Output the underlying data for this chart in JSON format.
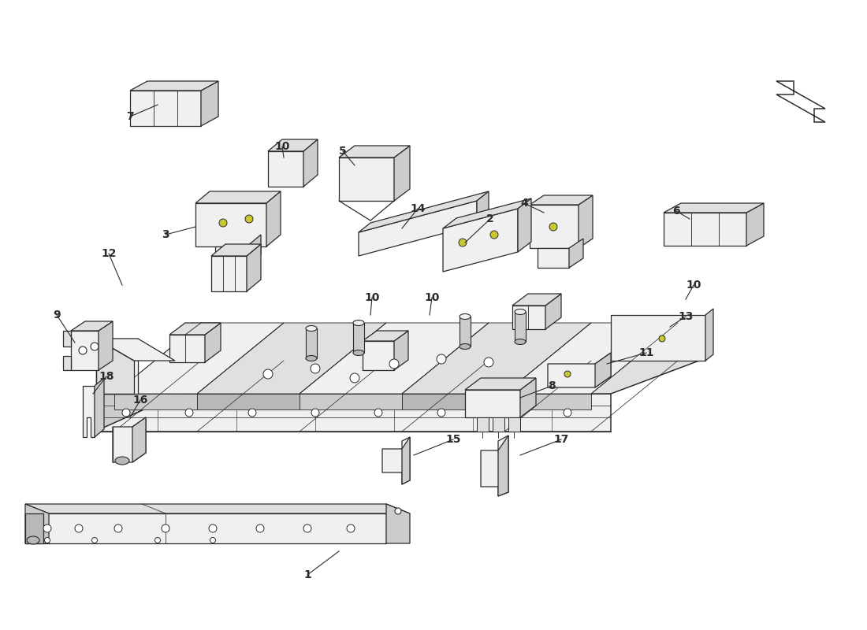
{
  "bg_color": "#ffffff",
  "line_color": "#2a2a2a",
  "lw": 0.9,
  "label_fs": 10,
  "figsize": [
    11.0,
    8.0
  ],
  "dpi": 100,
  "fc_white": "#ffffff",
  "fc_light": "#f0f0f0",
  "fc_mid": "#e0e0e0",
  "fc_dark": "#cccccc",
  "fc_darker": "#b8b8b8",
  "dot_color": "#c8c830"
}
